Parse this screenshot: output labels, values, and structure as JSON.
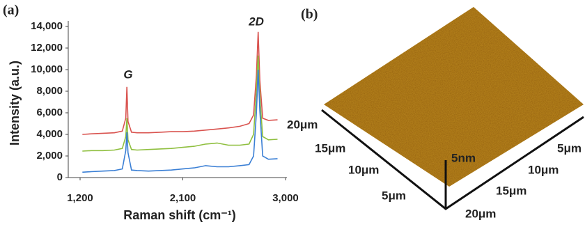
{
  "chart_data": {
    "type": "line",
    "panel_label": "(a)",
    "x_label": "Raman shift (cm⁻¹)",
    "y_label": "Intensity (a.u.)",
    "annotations": [
      "G",
      "2D"
    ],
    "x": [
      1220,
      1300,
      1400,
      1500,
      1570,
      1600,
      1610,
      1620,
      1650,
      1700,
      1800,
      1900,
      2000,
      2100,
      2200,
      2300,
      2400,
      2500,
      2600,
      2680,
      2720,
      2745,
      2760,
      2775,
      2800,
      2850,
      2930
    ],
    "series": [
      {
        "color": "#d9534f",
        "values": [
          4000,
          4050,
          4100,
          4150,
          4300,
          5500,
          8400,
          5200,
          4200,
          4150,
          4150,
          4200,
          4250,
          4250,
          4300,
          4400,
          4500,
          4600,
          4750,
          5000,
          5800,
          9500,
          13500,
          9000,
          5500,
          5300,
          5350
        ]
      },
      {
        "color": "#8fbf3f",
        "values": [
          2450,
          2500,
          2500,
          2550,
          2700,
          3800,
          5500,
          3500,
          2600,
          2550,
          2600,
          2650,
          2700,
          2800,
          2900,
          3100,
          3200,
          3000,
          3000,
          3100,
          4000,
          8000,
          11300,
          7500,
          3800,
          3500,
          3550
        ]
      },
      {
        "color": "#3a7fd5",
        "values": [
          500,
          550,
          600,
          650,
          800,
          2500,
          4200,
          2300,
          700,
          650,
          600,
          650,
          700,
          800,
          900,
          1100,
          1000,
          1000,
          1100,
          1200,
          2000,
          6000,
          10000,
          6200,
          2000,
          1700,
          1750
        ]
      }
    ],
    "xlim": [
      1200,
      3000
    ],
    "xticks": [
      {
        "value": 1200,
        "label": "1,200"
      },
      {
        "value": 2100,
        "label": "2,100"
      },
      {
        "value": 3000,
        "label": "3,000"
      }
    ],
    "ylim": [
      0,
      14000
    ],
    "yticks": [
      0,
      {
        "value": 2000,
        "label": "2,000"
      },
      {
        "value": 4000,
        "label": "4,000"
      },
      {
        "value": 6000,
        "label": "6,000"
      },
      {
        "value": 8000,
        "label": "8,000"
      },
      {
        "value": 10000,
        "label": "10,000"
      },
      {
        "value": 12000,
        "label": "12,000"
      },
      {
        "value": 14000,
        "label": "14,000"
      }
    ],
    "grid": false
  },
  "afm": {
    "panel_label": "(b)",
    "z_label": "5nm",
    "left_axis_labels": [
      "20μm",
      "15μm",
      "10μm",
      "5μm"
    ],
    "right_axis_labels": [
      "5μm",
      "10μm",
      "15μm",
      "20μm"
    ]
  }
}
